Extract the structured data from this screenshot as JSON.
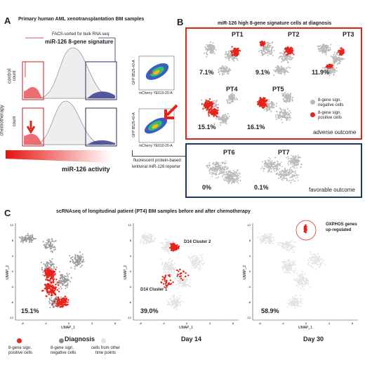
{
  "panelA": {
    "letter": "A",
    "title": "Primary human AML xenotransplantation BM samples",
    "facs_line1": "FACS-sorted for bulk RNA seq:",
    "facs_line2": "miR-126 8-gene signature",
    "row_control": "control",
    "row_chemo": "chemotherapy",
    "count_label": "count",
    "activity_label": "miR-126 activity",
    "reporter_line1": "fluorescent protein-based",
    "reporter_line2": "lentiviral miR-126 reporter",
    "scatter_y_label": "GFP B525-40-A",
    "scatter_x_label": "mCherry YE610-20-A"
  },
  "panelB": {
    "letter": "B",
    "title": "miR-126 high 8-gene signature cells at diagnosis",
    "adverse_label": "adverse outcome",
    "favorable_label": "favorable outcome",
    "legend_negative_line1": "8-gene sign.",
    "legend_negative_line2": "negative cells",
    "legend_positive_line1": "8-gene sign.",
    "legend_positive_line2": "positive cells",
    "patients": [
      {
        "id": "PT1",
        "pct": "7.1%"
      },
      {
        "id": "PT2",
        "pct": "9.1%"
      },
      {
        "id": "PT3",
        "pct": "11.9%"
      },
      {
        "id": "PT4",
        "pct": "15.1%"
      },
      {
        "id": "PT5",
        "pct": "16.1%"
      },
      {
        "id": "PT6",
        "pct": "0%"
      },
      {
        "id": "PT7",
        "pct": "0.1%"
      }
    ],
    "colors": {
      "positive": "#e8231a",
      "negative": "#b9b9b9",
      "adverse_box": "#d9261c",
      "favorable_box": "#1f3864"
    }
  },
  "panelC": {
    "letter": "C",
    "title": "scRNAseq of longitudinal patient (PT4) BM samples before and after chemotherapy",
    "umap_x": "UMAP_1",
    "umap_y": "UMAP_2",
    "plots": [
      {
        "label": "Diagnosis",
        "pct": "15.1%"
      },
      {
        "label": "Day 14",
        "pct": "39.0%",
        "cluster1": "D14 Cluster 1",
        "cluster2": "D14 Cluster 2"
      },
      {
        "label": "Day 30",
        "pct": "58.9%",
        "annotation_line1": "OXPHOS genes",
        "annotation_line2": "up-regulated"
      }
    ],
    "x_ticks": [
      "-8",
      "-4",
      "0",
      "4",
      "8"
    ],
    "y_ticks": [
      "12",
      "8",
      "4",
      "0",
      "-4",
      "-8",
      "-12"
    ],
    "legend": [
      {
        "line1": "8-gene sign.",
        "line2": "positive cells",
        "color": "#e8231a"
      },
      {
        "line1": "8-gene sign.",
        "line2": "negative cells",
        "color": "#888888"
      },
      {
        "line1": "cells from other",
        "line2": "time points",
        "color": "#e3e3e3"
      }
    ]
  }
}
